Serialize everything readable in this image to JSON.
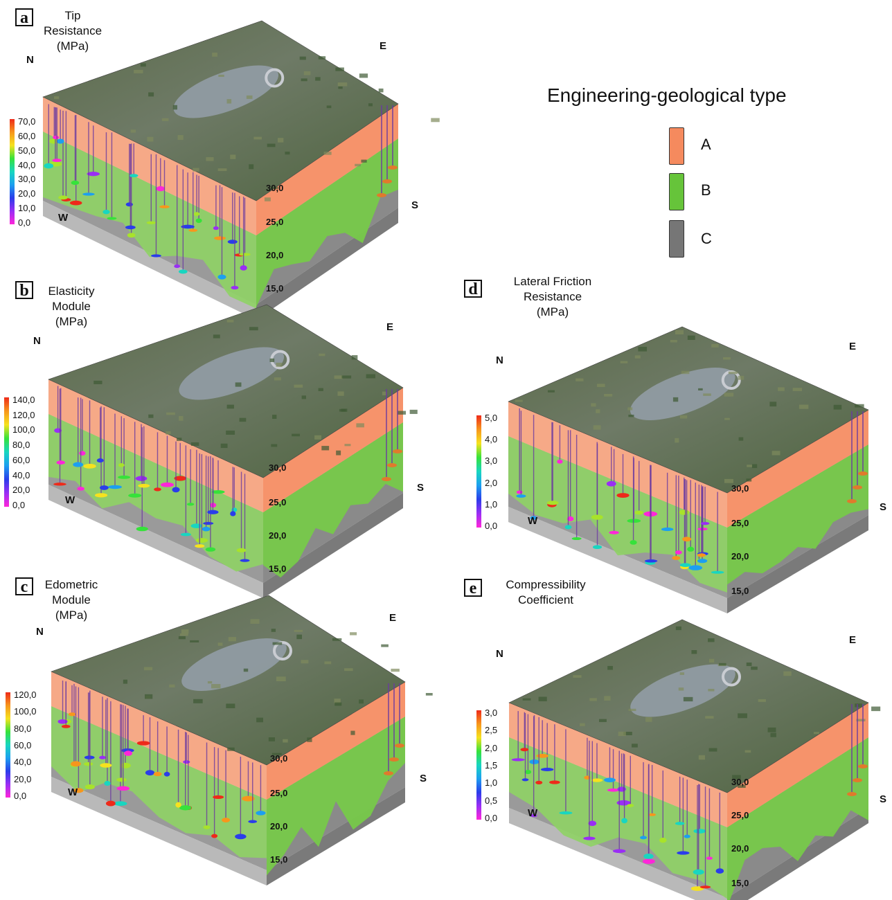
{
  "legend": {
    "title": "Engineering-geological type",
    "items": [
      {
        "label": "A",
        "color": "#f58a5e"
      },
      {
        "label": "B",
        "color": "#66c43a"
      },
      {
        "label": "C",
        "color": "#767676"
      }
    ]
  },
  "panels": [
    {
      "letter": "a",
      "title": [
        "Tip",
        "Resistance",
        "(MPa)"
      ],
      "scale": [
        "70,0",
        "60,0",
        "50,0",
        "40,0",
        "30,0",
        "20,0",
        "10,0",
        "0,0"
      ],
      "depths": [
        "30,0",
        "25,0",
        "20,0",
        "15,0"
      ],
      "dirs": {
        "n": "N",
        "e": "E",
        "s": "S",
        "w": "W"
      }
    },
    {
      "letter": "b",
      "title": [
        "Elasticity",
        "Module",
        "(MPa)"
      ],
      "scale": [
        "140,0",
        "120,0",
        "100,0",
        "80,0",
        "60,0",
        "40,0",
        "20,0",
        "0,0"
      ],
      "depths": [
        "30,0",
        "25,0",
        "20,0",
        "15,0"
      ],
      "dirs": {
        "n": "N",
        "e": "E",
        "s": "S",
        "w": "W"
      }
    },
    {
      "letter": "c",
      "title": [
        "Edometric",
        "Module",
        "(MPa)"
      ],
      "scale": [
        "120,0",
        "100,0",
        "80,0",
        "60,0",
        "40,0",
        "20,0",
        "0,0"
      ],
      "depths": [
        "30,0",
        "25,0",
        "20,0",
        "15,0"
      ],
      "dirs": {
        "n": "N",
        "e": "E",
        "s": "S",
        "w": "W"
      }
    },
    {
      "letter": "d",
      "title": [
        "Lateral Friction",
        "Resistance",
        "(MPa)"
      ],
      "scale": [
        "5,0",
        "4,0",
        "3,0",
        "2,0",
        "1,0",
        "0,0"
      ],
      "depths": [
        "30,0",
        "25,0",
        "20,0",
        "15,0"
      ],
      "dirs": {
        "n": "N",
        "e": "E",
        "s": "S",
        "w": "W"
      }
    },
    {
      "letter": "e",
      "title": [
        "Compressibility",
        "Coefficient"
      ],
      "scale": [
        "3,0",
        "2,5",
        "2,0",
        "1,5",
        "1,0",
        "0,5",
        "0,0"
      ],
      "depths": [
        "30,0",
        "25,0",
        "20,0",
        "15,0"
      ],
      "dirs": {
        "n": "N",
        "e": "E",
        "s": "S",
        "w": "W"
      }
    }
  ]
}
